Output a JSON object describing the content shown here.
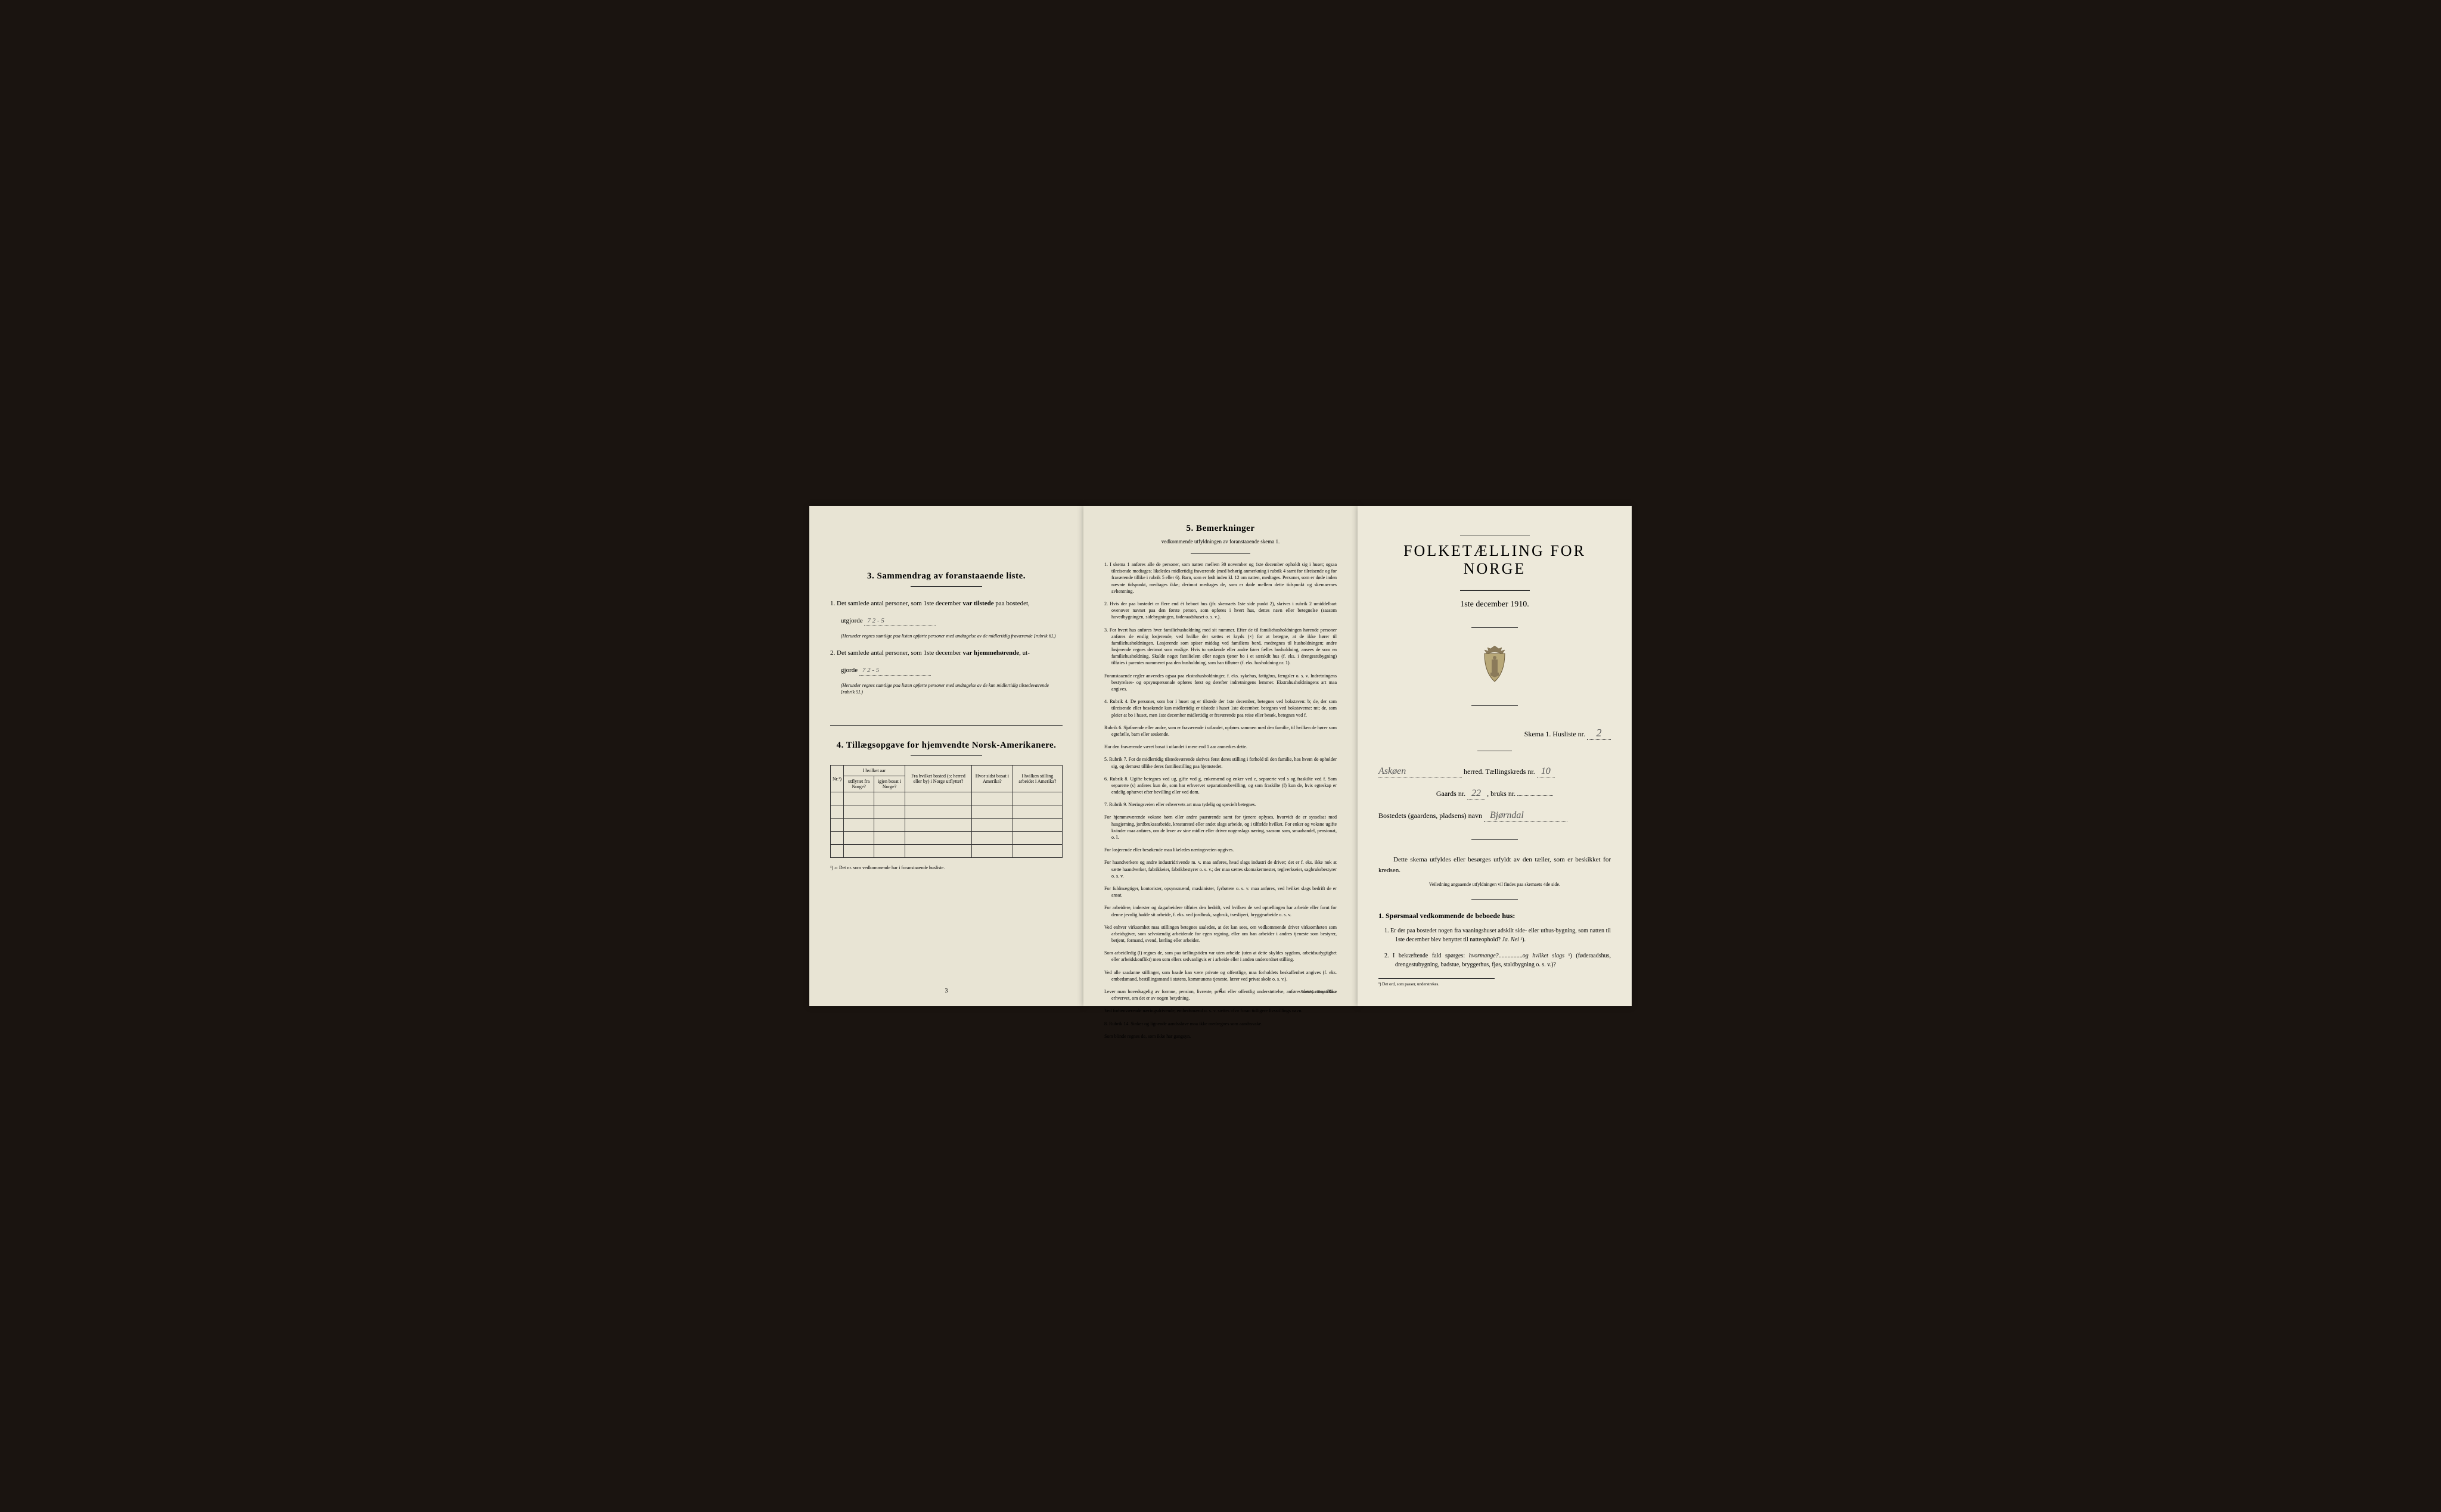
{
  "page1": {
    "section3": {
      "heading": "3.   Sammendrag av foranstaaende liste.",
      "item1_prefix": "1.  Det samlede antal personer, som 1ste december",
      "item1_bold": " var tilstede",
      "item1_suffix": " paa bostedet,",
      "item1_line2": "utgjorde",
      "item1_handwritten": "7      2 - 5",
      "item1_note": "(Herunder regnes samtlige paa listen opførte personer med undtagelse av de midlertidig fraværende [rubrik 6].)",
      "item2_prefix": "2.  Det samlede antal personer, som 1ste december",
      "item2_bold": " var hjemmehørende",
      "item2_suffix": ", ut-",
      "item2_line2": "gjorde",
      "item2_handwritten": "7     2 - 5",
      "item2_note": "(Herunder regnes samtlige paa listen opførte personer med undtagelse av de kun midlertidig tilstedeværende [rubrik 5].)"
    },
    "section4": {
      "heading": "4.   Tillægsopgave for hjemvendte Norsk-Amerikanere.",
      "table_headers": {
        "nr": "Nr.¹)",
        "col2_top": "I hvilket aar",
        "col2a": "utflyttet fra Norge?",
        "col2b": "igjen bosat i Norge?",
        "col3": "Fra hvilket bosted (ɔ: herred eller by) i Norge utflyttet?",
        "col4": "Hvor sidst bosat i Amerika?",
        "col5": "I hvilken stilling arbeidet i Amerika?"
      },
      "footnote": "¹) ɔ: Det nr. som vedkommende har i foranstaaende husliste."
    },
    "page_number": "3"
  },
  "page2": {
    "section5": {
      "heading": "5.   Bemerkninger",
      "subheading": "vedkommende utfyldningen av foranstaaende skema 1.",
      "items": [
        "1.  I skema 1 anføres alle de personer, som natten mellem 30 november og 1ste december opholdt sig i huset; ogsaa tilreisende medtages; likeledes midlertidig fraværende (med behørig anmerkning i rubrik 4 samt for tilreisende og for fraværende tillike i rubrik 5 eller 6). Barn, som er født inden kl. 12 om natten, medtages. Personer, som er døde inden nævnte tidspunkt, medtages ikke; derimot medtages de, som er døde mellem dette tidspunkt og skemaernes avhentning.",
        "2.  Hvis der paa bostedet er flere end ét beboet hus (jfr. skemaets 1ste side punkt 2), skrives i rubrik 2 umiddelbart ovenover navnet paa den første person, som opføres i hvert hus, dettes navn eller betegnelse (saasom hovedbygningen, sidebygningen, føderaadshuset o. s. v.).",
        "3.  For hvert hus anføres hver familiehusholdning med sit nummer. Efter de til familiehusholdningen hørende personer anføres de enslig losjerende, ved hvilke der sættes et kryds (×) for at betegne, at de ikke hører til familiehusholdningen. Losjerende som spiser middag ved familiens bord, medregnes til husholdningen; andre losjerende regnes derimot som enslige. Hvis to søskende eller andre fører fælles husholdning, ansees de som en familiehusholdning. Skulde noget familielem eller nogen tjener bo i et særskilt hus (f. eks. i drengestubygning) tilføies i parentes nummeret paa den husholdning, som han tilhører (f. eks. husholdning nr. 1).",
        "     Foranstaaende regler anvendes ogsaa paa ekstrahusholdninger, f. eks. sykehus, fattighus, fængsler o. s. v. Indretningens bestyrelses- og opsynspersonale opføres først og derefter indretningens lemmer. Ekstrahusholdningens art maa angives.",
        "4.  Rubrik 4. De personer, som bor i huset og er tilstede der 1ste december, betegnes ved bokstaven: b; de, der som tilreisende eller besøkende kun midlertidig er tilstede i huset 1ste december, betegnes ved bokstaverne: mt; de, som pleier at bo i huset, men 1ste december midlertidig er fraværende paa reise eller besøk, betegnes ved f.",
        "     Rubrik 6. Sjøfarende eller andre, som er fraværende i utlandet, opføres sammen med den familie, til hvilken de hører som egtefælle, barn eller søskende.",
        "     Har den fraværende været bosat i utlandet i mere end 1 aar anmerkes dette.",
        "5.  Rubrik 7. For de midlertidig tilstedeværende skrives først deres stilling i forhold til den familie, hos hvem de opholder sig, og dernæst tillike deres familiestilling paa hjemstedet.",
        "6.  Rubrik 8. Ugifte betegnes ved ug, gifte ved g, enkemænd og enker ved e, separerte ved s og fraskilte ved f. Som separerte (s) anføres kun de, som har erhvervet separationsbevilling, og som fraskilte (f) kun de, hvis egteskap er endelig ophævet efter bevilling eller ved dom.",
        "7.  Rubrik 9. Næringsveien eller erhvervets art maa tydelig og specielt betegnes.",
        "     For hjemmeværende voksne børn eller andre paarørende samt for tjenere oplyses, hvorvidt de er sysselsat med husgjerning, jordbrukssarbeide, kreatursted eller andet slags arbeide, og i tilfælde hvilket. For enker og voksne ugifte kvinder maa anføres, om de lever av sine midler eller driver nogenslags næring, saasom som, smaahandel, pensionat, o. l.",
        "     For losjerende eller besøkende maa likeledes næringsveien opgives.",
        "     For haandverkere og andre industridrivende m. v. maa anføres, hvad slags industri de driver; det er f. eks. ikke nok at sætte haandverker, fabrikkeier, fabrikbestyrer o. s. v.; der maa sættes skomakermester, teglverkseier, sagbruksbestyrer o. s. v.",
        "     For fuldmægtiger, kontorister, opsynsmænd, maskinister, fyrbøtere o. s. v. maa anføres, ved hvilket slags bedrift de er ansat.",
        "     For arbeidere, inderster og dagarbeidere tilføies den bedrift, ved hvilken de ved optællingen har arbeide eller forut for denne jevnlig hadde sit arbeide, f. eks. ved jordbruk, sagbruk, træsliperi, bryggearbeide o. s. v.",
        "     Ved enhver virksomhet maa stillingen betegnes saaledes, at det kan sees, om vedkommende driver virksomheten som arbeidsgiver, som selvstændig arbeidende for egen regning, eller om han arbeider i andres tjeneste som bestyrer, betjent, formand, svend, lærling eller arbeider.",
        "     Som arbeidledig (l) regnes de, som paa tællingstiden var uten arbeide (uten at dette skyldes sygdom, arbeidsudygtighet eller arbeidskonflikt) men som ellers sedvanligvis er i arbeide eller i anden underordnet stilling.",
        "     Ved alle saadanne stillinger, som baade kan være private og offentlige, maa forholdets beskaffenhet angives (f. eks. embedsmand, bestillingsmand i statens, kommunens tjeneste, lærer ved privat skole o. s. v.).",
        "     Lever man hovedsagelig av formue, pension, livrente, privat eller offentlig understøttelse, anføres dette, men tillike erhvervet, om det er av nogen betydning.",
        "     Ved forhenværende næringsdrivende, embedsmænd o. s. v. sættes «fv» foran tidligere livsstillings navn.",
        "8.  Rubrik 14. Sinker og lignende aandssløve maa ikke medregnes som aandssvake.",
        "     Som blinde regnes de, som ikke har gangsyn."
      ]
    },
    "page_number": "4",
    "printer": "Steen'ske Bogtr.  Kr.a."
  },
  "page3": {
    "main_title": "FOLKETÆLLING FOR NORGE",
    "sub_title": "1ste december 1910.",
    "form_lines": {
      "skema_label": "Skema 1.   Husliste nr.",
      "skema_value": "2",
      "herred_value": "Askøen",
      "herred_label": "herred.   Tællingskreds nr.",
      "kreds_value": "10",
      "gaards_label": "Gaards nr.",
      "gaards_value": "22",
      "bruks_label": ", bruks nr.",
      "bruks_value": "",
      "bosted_label": "Bostedets (gaardens, pladsens) navn",
      "bosted_value": "Bjørndal"
    },
    "instruction1": "Dette skema utfyldes eller besørges utfyldt av den tæller, som er beskikket for kredsen.",
    "instruction2": "Veiledning angaaende utfyldningen vil findes paa skemaets 4de side.",
    "question_heading": "1. Spørsmaal vedkommende de beboede hus:",
    "questions": [
      {
        "num": "1.",
        "text_before": "Er der paa bostedet nogen fra vaaningshuset adskilt side- eller uthus-bygning, som natten til 1ste december blev benyttet til natteophold?    ",
        "text_italic": "Ja.   Nei",
        "text_after": " ¹)."
      },
      {
        "num": "2.",
        "text_before": "I bekræftende fald spørges:   ",
        "text_italic": "hvormange?",
        "text_mid": "................",
        "text_italic2": "og hvilket slags",
        "text_after": " ¹) (føderaadshus, drengestubygning, badstue, bryggerhus, fjøs, staldbygning  o. s. v.)?"
      }
    ],
    "footnote": "¹) Det ord, som passer, understrekes."
  }
}
